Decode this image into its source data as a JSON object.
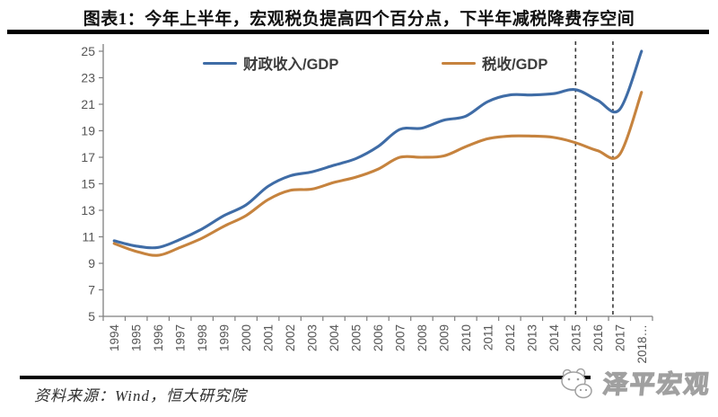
{
  "title": "图表1：今年上半年，宏观税负提高四个百分点，下半年减税降费存空间",
  "source_note": "资料来源：Wind，恒大研究院",
  "watermark": "泽平宏观",
  "colors": {
    "series_fiscal": "#3F6CA6",
    "series_tax": "#C6833E",
    "axis": "#7f7f7f",
    "tick_label": "#555555",
    "dashed_marker": "#3a3a3a",
    "title_text": "#111111"
  },
  "chart_data": {
    "type": "line",
    "categories": [
      "1994",
      "1995",
      "1996",
      "1997",
      "1998",
      "1999",
      "2000",
      "2001",
      "2002",
      "2003",
      "2004",
      "2005",
      "2006",
      "2007",
      "2008",
      "2009",
      "2010",
      "2011",
      "2012",
      "2013",
      "2014",
      "2015",
      "2016",
      "2017",
      "2018"
    ],
    "x_last_label_dots": "…",
    "series": [
      {
        "name": "财政收入/GDP",
        "color": "#3F6CA6",
        "values": [
          10.7,
          10.3,
          10.2,
          10.8,
          11.6,
          12.6,
          13.4,
          14.8,
          15.6,
          15.9,
          16.4,
          16.9,
          17.8,
          19.1,
          19.2,
          19.8,
          20.1,
          21.2,
          21.7,
          21.7,
          21.8,
          22.1,
          21.3,
          20.6,
          25.0
        ]
      },
      {
        "name": "税收/GDP",
        "color": "#C6833E",
        "values": [
          10.5,
          9.9,
          9.6,
          10.2,
          10.9,
          11.8,
          12.6,
          13.8,
          14.5,
          14.6,
          15.1,
          15.5,
          16.1,
          17.0,
          17.0,
          17.1,
          17.8,
          18.4,
          18.6,
          18.6,
          18.5,
          18.1,
          17.5,
          17.2,
          21.9
        ]
      }
    ],
    "ylim": [
      5,
      25
    ],
    "ytick_step": 2,
    "grid": false,
    "legend_position": "top",
    "annotations": {
      "dashed_vlines_at_category_fraction": [
        21.0,
        22.7
      ]
    }
  }
}
